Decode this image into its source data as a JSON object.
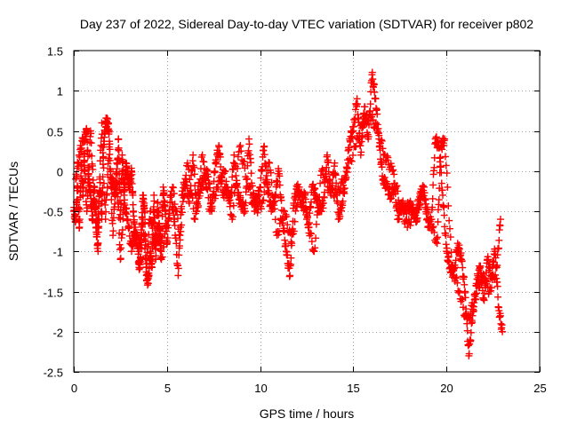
{
  "chart_data": {
    "type": "scatter",
    "title": "Day 237 of 2022, Sidereal Day-to-day VTEC variation (SDTVAR) for receiver p802",
    "xlabel": "GPS time / hours",
    "ylabel": "SDTVAR / TECUs",
    "xlim": [
      0,
      25
    ],
    "ylim": [
      -2.5,
      1.5
    ],
    "xticks": [
      0,
      5,
      10,
      15,
      20,
      25
    ],
    "xtick_labels": [
      "0",
      "5",
      "10",
      "15",
      "20",
      "25"
    ],
    "yticks": [
      -2.5,
      -2,
      -1.5,
      -1,
      -0.5,
      0,
      0.5,
      1,
      1.5
    ],
    "ytick_labels": [
      "-2.5",
      "-2",
      "-1.5",
      "-1",
      "-0.5",
      "0",
      "0.5",
      "1",
      "1.5"
    ],
    "grid": true,
    "marker": "+",
    "color": "#ff0000",
    "series": [
      {
        "name": "SDTVAR",
        "x": [
          0.0,
          0.1,
          0.2,
          0.3,
          0.4,
          0.5,
          0.6,
          0.7,
          0.8,
          0.9,
          1.0,
          1.1,
          1.2,
          1.3,
          1.4,
          1.5,
          1.6,
          1.7,
          1.8,
          1.9,
          2.0,
          2.1,
          2.2,
          2.3,
          2.4,
          2.5,
          2.6,
          2.7,
          2.8,
          2.9,
          3.0,
          3.1,
          3.2,
          3.3,
          3.4,
          3.5,
          3.6,
          3.7,
          3.8,
          3.9,
          4.0,
          4.1,
          4.2,
          4.3,
          4.4,
          4.5,
          4.6,
          4.7,
          4.8,
          4.9,
          5.0,
          5.2,
          5.4,
          5.6,
          5.8,
          6.0,
          6.2,
          6.4,
          6.6,
          6.8,
          7.0,
          7.2,
          7.4,
          7.6,
          7.8,
          8.0,
          8.2,
          8.4,
          8.6,
          8.8,
          9.0,
          9.2,
          9.4,
          9.6,
          9.8,
          10.0,
          10.2,
          10.4,
          10.6,
          10.8,
          11.0,
          11.2,
          11.4,
          11.6,
          11.8,
          12.0,
          12.2,
          12.4,
          12.6,
          12.8,
          13.0,
          13.2,
          13.4,
          13.6,
          13.8,
          14.0,
          14.2,
          14.4,
          14.6,
          14.8,
          15.0,
          15.2,
          15.4,
          15.6,
          15.8,
          16.0,
          16.2,
          16.4,
          16.6,
          16.8,
          17.0,
          17.2,
          17.4,
          17.6,
          17.8,
          18.0,
          18.2,
          18.4,
          18.6,
          18.8,
          19.0,
          19.2,
          19.4,
          19.6,
          19.8,
          20.0,
          20.2,
          20.4,
          20.6,
          20.8,
          21.0,
          21.2,
          21.4,
          21.6,
          21.8,
          22.0,
          22.2,
          22.4,
          22.6,
          22.8,
          23.0,
          0.1,
          0.3,
          0.5,
          0.7,
          0.9,
          1.1,
          1.3,
          1.5,
          1.7,
          1.9,
          2.1,
          2.3,
          2.5,
          2.7,
          2.9,
          3.1,
          3.3,
          3.5,
          3.7,
          3.9,
          4.1,
          4.3,
          4.5,
          4.7,
          5.3,
          5.7,
          6.1,
          6.5,
          6.9,
          7.3,
          7.7,
          8.1,
          8.5,
          8.9,
          9.3,
          9.7,
          10.1,
          10.5,
          10.9,
          11.3,
          11.7,
          12.1,
          12.5,
          12.9,
          13.3,
          13.7,
          14.1,
          14.5,
          15.1,
          15.5,
          15.9,
          16.3,
          16.7,
          17.1,
          17.5,
          17.9,
          18.3,
          18.7,
          19.1,
          19.5,
          19.7,
          19.9,
          20.3,
          20.7,
          21.1,
          21.5,
          21.9,
          22.3,
          22.7,
          22.9
        ],
        "y": [
          -0.5,
          -0.6,
          -0.2,
          -0.7,
          0.1,
          -0.3,
          0.4,
          0.5,
          -0.1,
          -0.3,
          -0.6,
          -0.2,
          -0.7,
          -1.0,
          -0.1,
          -0.6,
          0.3,
          0.6,
          0.6,
          0.5,
          -0.2,
          -0.1,
          -0.3,
          -0.2,
          0.4,
          -0.6,
          0.2,
          -0.3,
          0.1,
          -0.1,
          -0.2,
          0.0,
          -0.5,
          -0.9,
          -0.8,
          -1.2,
          -1.1,
          -0.3,
          -0.5,
          -1.3,
          -1.4,
          -1.0,
          -1.2,
          -0.3,
          -1.1,
          -0.4,
          -0.7,
          -1.0,
          -0.2,
          -0.5,
          -0.9,
          -0.3,
          -0.6,
          -1.3,
          -0.3,
          -0.1,
          -0.4,
          0.2,
          -0.5,
          -0.2,
          -0.1,
          0.0,
          -0.5,
          0.1,
          0.3,
          -0.3,
          -0.2,
          -0.4,
          0.2,
          -0.3,
          -0.4,
          -0.5,
          0.4,
          -0.3,
          -0.4,
          -0.2,
          0.3,
          -0.2,
          -0.5,
          -0.3,
          0.0,
          -0.6,
          -1.0,
          -1.3,
          -0.4,
          -0.2,
          -0.4,
          -0.3,
          -0.7,
          -0.2,
          -0.3,
          -0.5,
          -0.4,
          0.2,
          -0.3,
          0.1,
          -0.6,
          -0.4,
          -0.1,
          0.4,
          0.5,
          0.9,
          0.2,
          0.8,
          0.4,
          1.2,
          0.9,
          0.3,
          -0.1,
          -0.2,
          -0.3,
          -0.2,
          -0.6,
          -0.4,
          -0.5,
          -0.4,
          -0.5,
          -0.6,
          -0.3,
          -0.2,
          -0.7,
          -0.6,
          0.4,
          0.3,
          -0.3,
          -1.0,
          -1.2,
          -1.3,
          -0.9,
          -1.1,
          -1.5,
          -2.3,
          -1.8,
          -1.4,
          -1.2,
          -1.6,
          -1.1,
          -1.3,
          -1.0,
          -1.7,
          -2.0,
          -0.1,
          0.2,
          0.4,
          -0.5,
          0.5,
          -0.4,
          -0.7,
          0.6,
          -0.6,
          0.3,
          -0.8,
          0.1,
          -1.1,
          -0.4,
          -0.6,
          -1.0,
          -0.7,
          -1.0,
          -0.6,
          -1.2,
          -0.5,
          -0.9,
          -0.7,
          -1.1,
          -0.2,
          -0.8,
          0.1,
          -0.6,
          0.2,
          -0.5,
          -0.2,
          0.0,
          -0.6,
          0.3,
          -0.1,
          -0.5,
          -0.4,
          0.1,
          -0.8,
          -0.5,
          -0.9,
          -0.2,
          -0.6,
          -1.0,
          0.0,
          -0.2,
          -0.3,
          -0.1,
          0.3,
          0.6,
          0.7,
          0.5,
          0.2,
          0.0,
          -0.4,
          -0.7,
          -0.5,
          -0.3,
          -0.6,
          -0.9,
          0.3,
          0.4,
          -1.2,
          -1.5,
          -1.9,
          -1.6,
          -1.3,
          -1.5,
          -1.2,
          -0.6
        ]
      }
    ]
  }
}
